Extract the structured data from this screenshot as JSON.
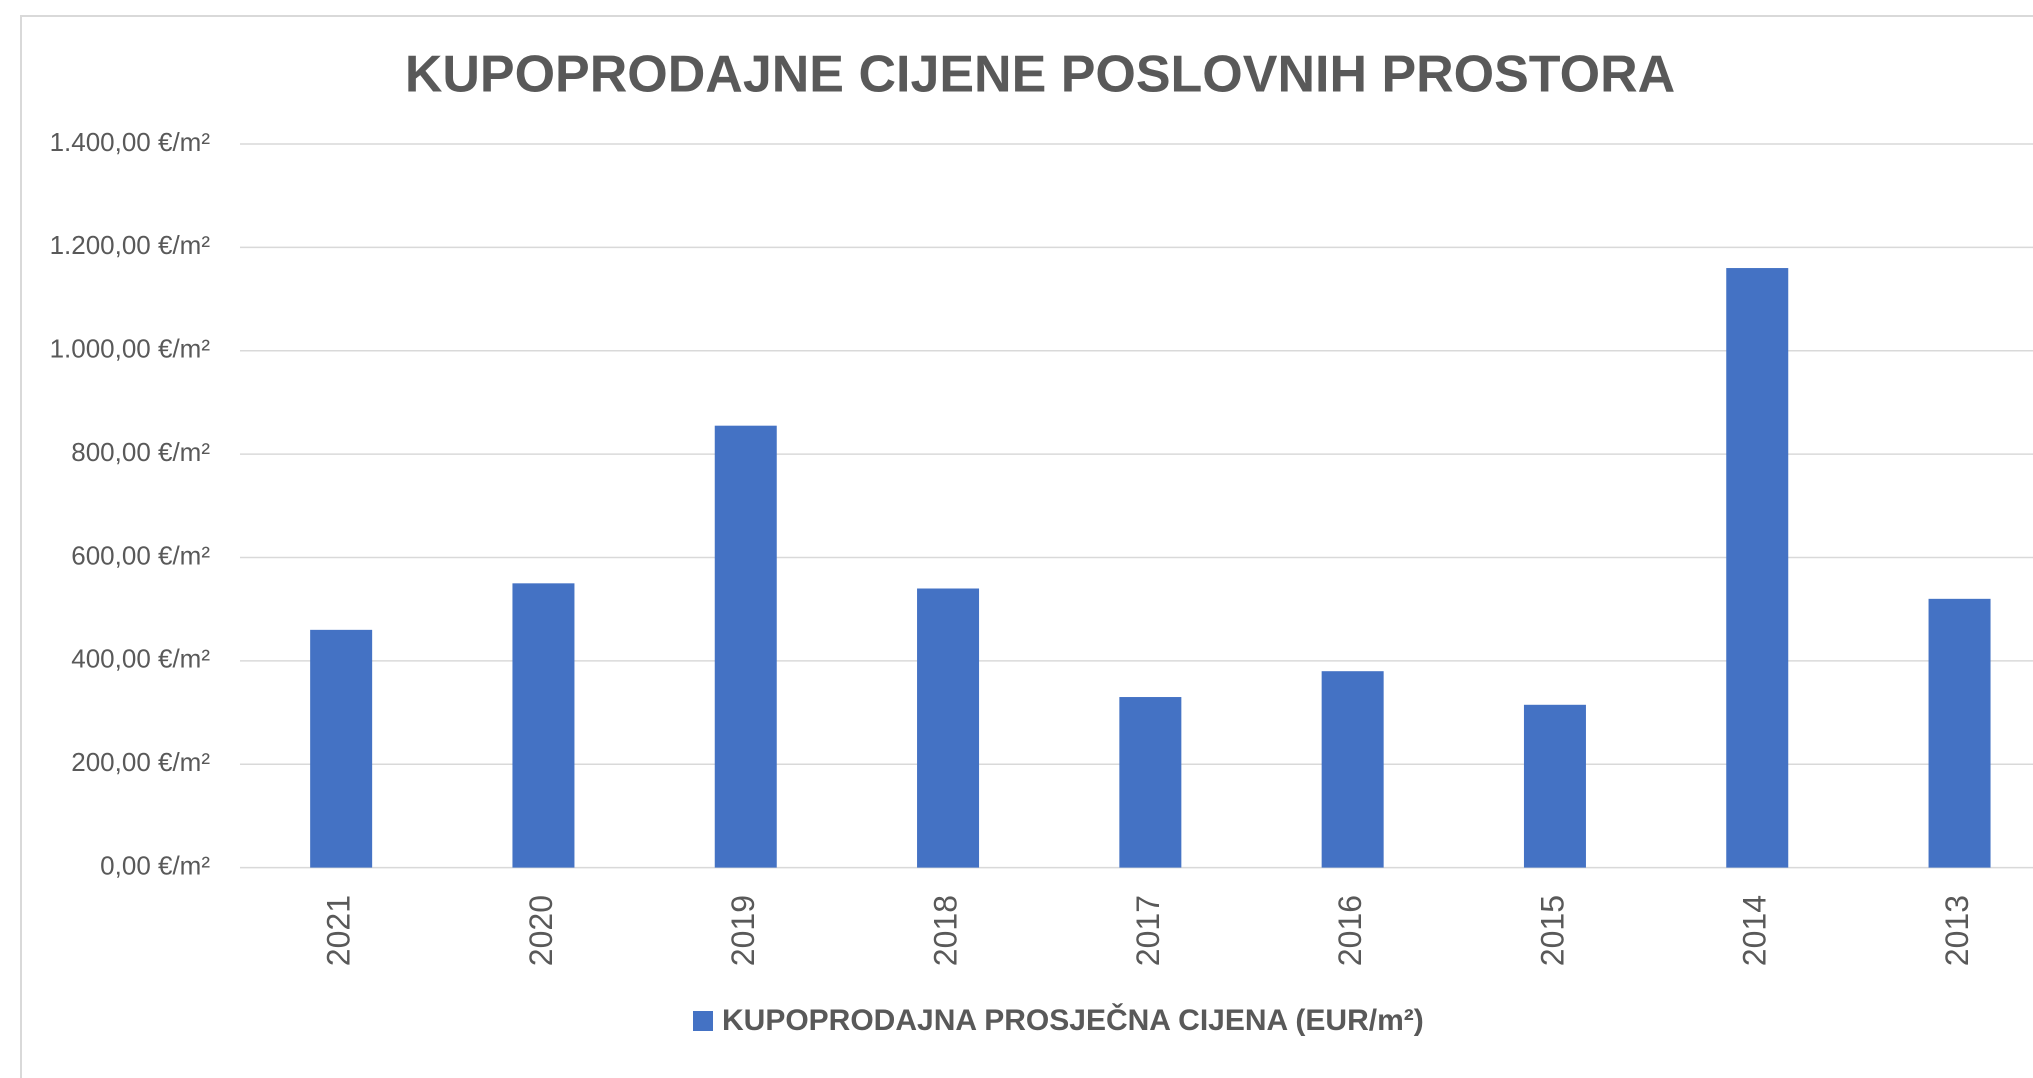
{
  "chart_data": {
    "type": "bar",
    "title": "KUPOPRODAJNE CIJENE POSLOVNIH PROSTORA",
    "categories": [
      "2021",
      "2020",
      "2019",
      "2018",
      "2017",
      "2016",
      "2015",
      "2014",
      "2013"
    ],
    "series": [
      {
        "name": "KUPOPRODAJNA PROSJEČNA CIJENA (EUR/m²)",
        "color": "#4472c4",
        "values": [
          460,
          550,
          855,
          540,
          330,
          380,
          315,
          1160,
          520
        ]
      }
    ],
    "ylim": [
      0,
      1400
    ],
    "yticks": [
      {
        "value": 0,
        "label": "0,00 €/m²"
      },
      {
        "value": 200,
        "label": "200,00 €/m²"
      },
      {
        "value": 400,
        "label": "400,00 €/m²"
      },
      {
        "value": 600,
        "label": "600,00 €/m²"
      },
      {
        "value": 800,
        "label": "800,00 €/m²"
      },
      {
        "value": 1000,
        "label": "1.000,00 €/m²"
      },
      {
        "value": 1200,
        "label": "1.200,00 €/m²"
      },
      {
        "value": 1400,
        "label": "1.400,00 €/m²"
      }
    ],
    "grid": true,
    "legend": "bottom"
  }
}
